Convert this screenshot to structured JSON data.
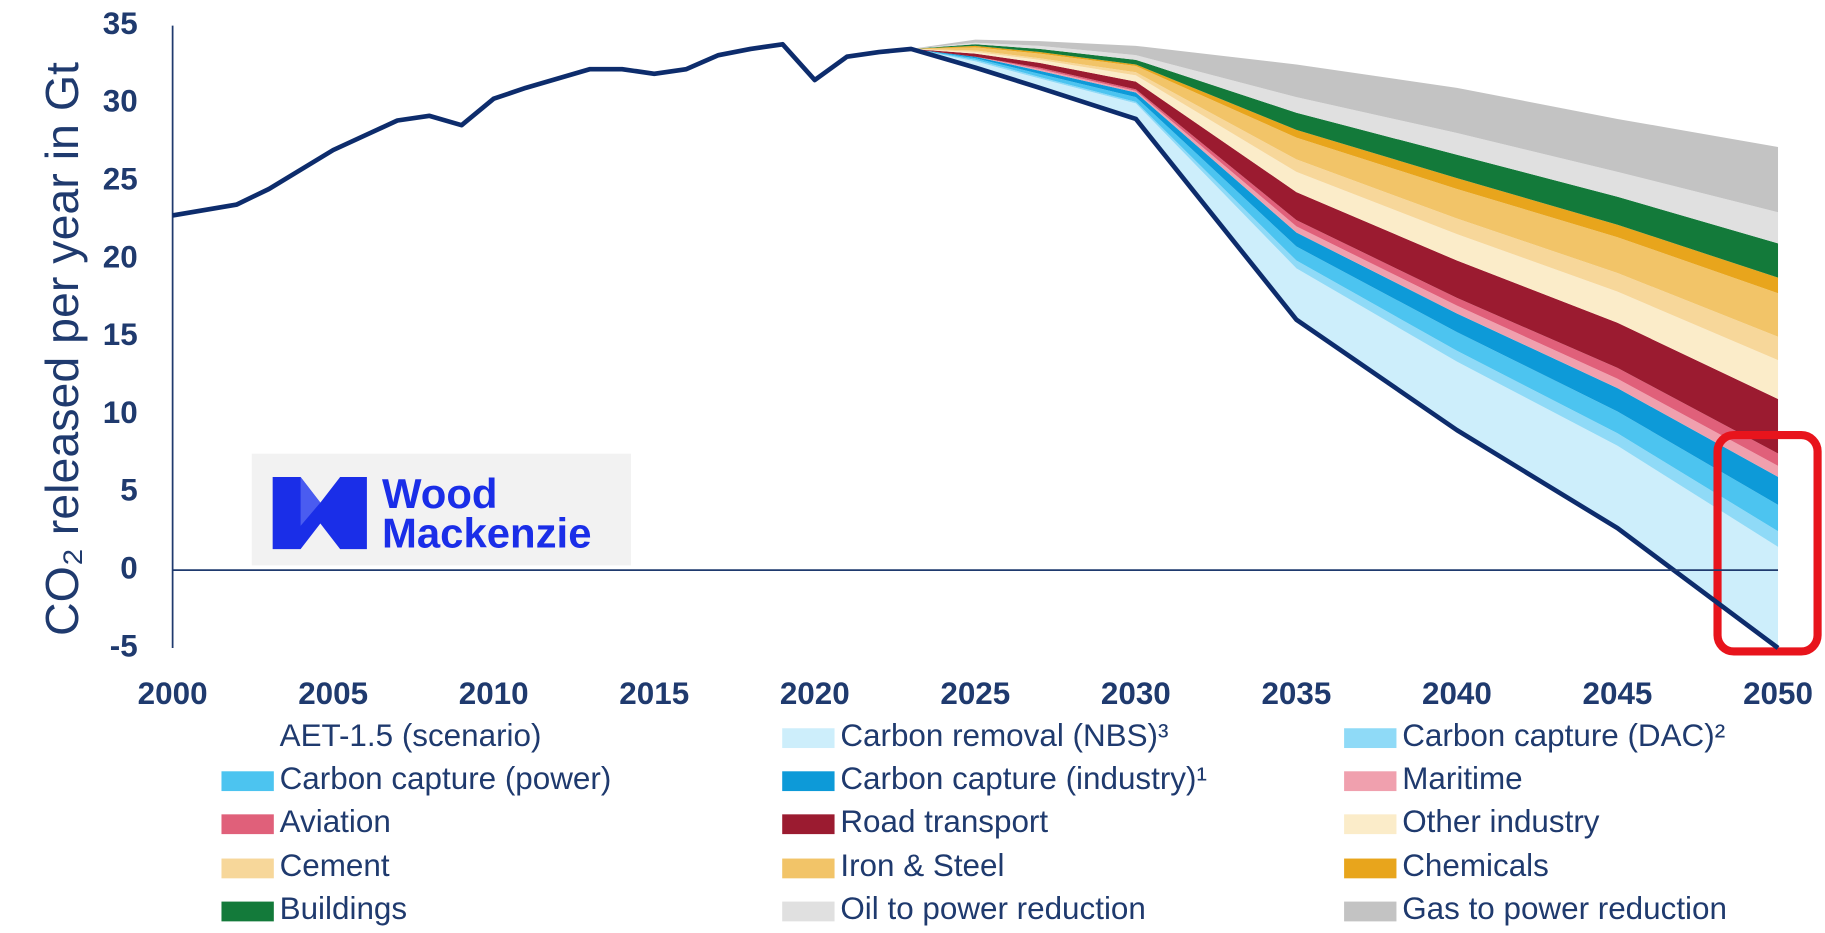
{
  "chart_data": {
    "type": "stacked-area",
    "y_label": "CO₂ released per year in Gt",
    "x": [
      2000,
      2002,
      2003,
      2005,
      2007,
      2008,
      2009,
      2010,
      2011,
      2013,
      2014,
      2015,
      2016,
      2017,
      2018,
      2019,
      2020,
      2021,
      2022,
      2023,
      2025,
      2027,
      2030,
      2035,
      2040,
      2045,
      2050
    ],
    "xlim": [
      2000,
      2050
    ],
    "xticks": [
      2000,
      2005,
      2010,
      2015,
      2020,
      2025,
      2030,
      2035,
      2040,
      2045,
      2050
    ],
    "ylim": [
      -5,
      35
    ],
    "yticks": [
      -5,
      0,
      5,
      10,
      15,
      20,
      25,
      30,
      35
    ],
    "legend": "bottom",
    "series": [
      {
        "name": "AET-1.5 (scenario)",
        "style": "line",
        "color": "#0d2c6c",
        "values": [
          22.8,
          23.5,
          24.5,
          27,
          28.9,
          29.2,
          28.6,
          30.3,
          31,
          32.2,
          32.2,
          31.9,
          32.2,
          33.1,
          33.5,
          33.8,
          31.5,
          33,
          33.3,
          33.5,
          32.3,
          31,
          29,
          16.1,
          9,
          2.7,
          -5
        ]
      },
      {
        "name": "Carbon removal (NBS)³",
        "style": "area",
        "color": "#cdeefb",
        "values": [
          null,
          null,
          null,
          null,
          null,
          null,
          null,
          null,
          null,
          null,
          null,
          null,
          null,
          null,
          null,
          null,
          null,
          null,
          null,
          0,
          0.4,
          0.6,
          1,
          3.3,
          4.4,
          5.3,
          6.5
        ]
      },
      {
        "name": "Carbon capture (DAC)²",
        "style": "area",
        "color": "#8fdaf7",
        "values": [
          null,
          null,
          null,
          null,
          null,
          null,
          null,
          null,
          null,
          null,
          null,
          null,
          null,
          null,
          null,
          null,
          null,
          null,
          null,
          0,
          0.1,
          0.1,
          0.1,
          0.5,
          0.7,
          0.8,
          1
        ]
      },
      {
        "name": "Carbon capture (power)",
        "style": "area",
        "color": "#4cc4f0",
        "values": [
          null,
          null,
          null,
          null,
          null,
          null,
          null,
          null,
          null,
          null,
          null,
          null,
          null,
          null,
          null,
          null,
          null,
          null,
          null,
          0,
          0.1,
          0.2,
          0.3,
          0.9,
          1.2,
          1.4,
          1.7
        ]
      },
      {
        "name": "Carbon capture (industry)¹",
        "style": "area",
        "color": "#0d9ad8",
        "values": [
          null,
          null,
          null,
          null,
          null,
          null,
          null,
          null,
          null,
          null,
          null,
          null,
          null,
          null,
          null,
          null,
          null,
          null,
          null,
          0,
          0.1,
          0.2,
          0.3,
          0.9,
          1.2,
          1.5,
          1.8
        ]
      },
      {
        "name": "Maritime",
        "style": "area",
        "color": "#f0a0ae",
        "values": [
          null,
          null,
          null,
          null,
          null,
          null,
          null,
          null,
          null,
          null,
          null,
          null,
          null,
          null,
          null,
          null,
          null,
          null,
          null,
          0,
          0,
          0.1,
          0.1,
          0.4,
          0.5,
          0.6,
          0.7
        ]
      },
      {
        "name": "Aviation",
        "style": "area",
        "color": "#e0607a",
        "values": [
          null,
          null,
          null,
          null,
          null,
          null,
          null,
          null,
          null,
          null,
          null,
          null,
          null,
          null,
          null,
          null,
          null,
          null,
          null,
          0,
          0,
          0.1,
          0.1,
          0.4,
          0.5,
          0.7,
          0.8
        ]
      },
      {
        "name": "Road transport",
        "style": "area",
        "color": "#9b1b30",
        "values": [
          null,
          null,
          null,
          null,
          null,
          null,
          null,
          null,
          null,
          null,
          null,
          null,
          null,
          null,
          null,
          null,
          null,
          null,
          null,
          0,
          0.2,
          0.3,
          0.5,
          1.8,
          2.4,
          2.9,
          3.5
        ]
      },
      {
        "name": "Other industry",
        "style": "area",
        "color": "#fbecc9",
        "values": [
          null,
          null,
          null,
          null,
          null,
          null,
          null,
          null,
          null,
          null,
          null,
          null,
          null,
          null,
          null,
          null,
          null,
          null,
          null,
          0,
          0.1,
          0.2,
          0.4,
          1.3,
          1.7,
          2,
          2.5
        ]
      },
      {
        "name": "Cement",
        "style": "area",
        "color": "#f7d79a",
        "values": [
          null,
          null,
          null,
          null,
          null,
          null,
          null,
          null,
          null,
          null,
          null,
          null,
          null,
          null,
          null,
          null,
          null,
          null,
          null,
          0,
          0.1,
          0.1,
          0.2,
          0.8,
          1,
          1.2,
          1.5
        ]
      },
      {
        "name": "Iron & Steel",
        "style": "area",
        "color": "#f2c468",
        "values": [
          null,
          null,
          null,
          null,
          null,
          null,
          null,
          null,
          null,
          null,
          null,
          null,
          null,
          null,
          null,
          null,
          null,
          null,
          null,
          0,
          0.2,
          0.3,
          0.4,
          1.4,
          1.9,
          2.3,
          2.8
        ]
      },
      {
        "name": "Chemicals",
        "style": "area",
        "color": "#e8a51c",
        "values": [
          null,
          null,
          null,
          null,
          null,
          null,
          null,
          null,
          null,
          null,
          null,
          null,
          null,
          null,
          null,
          null,
          null,
          null,
          null,
          0,
          0.1,
          0.1,
          0.1,
          0.5,
          0.7,
          0.8,
          1
        ]
      },
      {
        "name": "Buildings",
        "style": "area",
        "color": "#137a3a",
        "values": [
          null,
          null,
          null,
          null,
          null,
          null,
          null,
          null,
          null,
          null,
          null,
          null,
          null,
          null,
          null,
          null,
          null,
          null,
          null,
          0,
          0.1,
          0.2,
          0.3,
          1.1,
          1.5,
          1.8,
          2.2
        ]
      },
      {
        "name": "Oil to power reduction",
        "style": "area",
        "color": "#e0e0e0",
        "values": [
          null,
          null,
          null,
          null,
          null,
          null,
          null,
          null,
          null,
          null,
          null,
          null,
          null,
          null,
          null,
          null,
          null,
          null,
          null,
          0,
          0.1,
          0.2,
          0.3,
          1,
          1.4,
          1.6,
          2
        ]
      },
      {
        "name": "Gas to power reduction",
        "style": "area",
        "color": "#c3c3c3",
        "values": [
          null,
          null,
          null,
          null,
          null,
          null,
          null,
          null,
          null,
          null,
          null,
          null,
          null,
          null,
          null,
          null,
          null,
          null,
          null,
          0,
          0.2,
          0.3,
          0.6,
          2.1,
          2.9,
          3.4,
          4.2
        ]
      }
    ]
  },
  "logo": {
    "line1": "Wood",
    "line2": "Mackenzie"
  }
}
